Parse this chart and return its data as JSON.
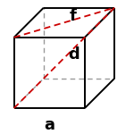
{
  "cube_color": "#000000",
  "hidden_color": "#999999",
  "dashed_red_color": "#cc0000",
  "background_color": "#ffffff",
  "label_f": "f",
  "label_d": "d",
  "label_a": "a",
  "label_fontsize": 13,
  "label_fontweight": "bold",
  "figsize": [
    1.5,
    1.5
  ],
  "dpi": 100,
  "s": 1.0,
  "ox": 0.42,
  "oy": 0.42,
  "lw_solid": 1.4,
  "lw_hidden": 1.0,
  "lw_red": 1.3,
  "xlim": [
    -0.08,
    1.58
  ],
  "ylim": [
    -0.18,
    1.52
  ]
}
